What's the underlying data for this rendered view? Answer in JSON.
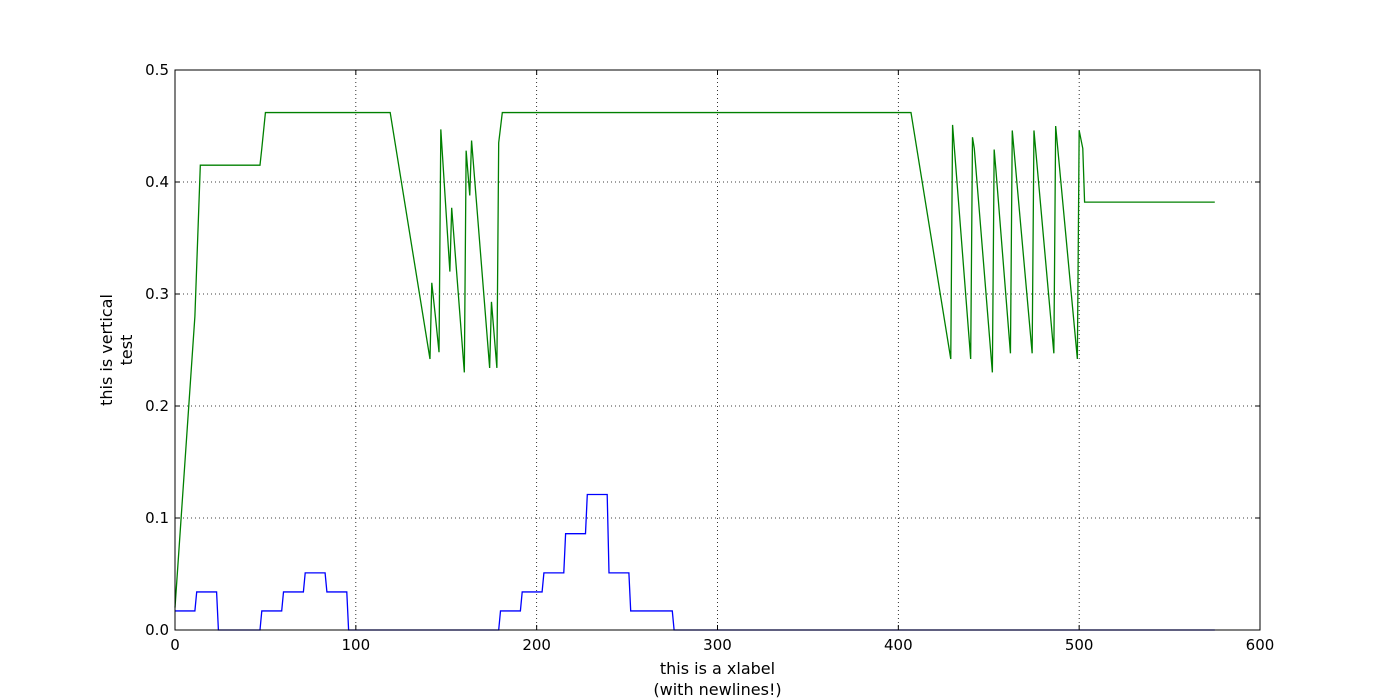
{
  "chart_data": {
    "type": "line",
    "title": "",
    "xlabel_lines": [
      "this is a xlabel",
      "(with newlines!)"
    ],
    "ylabel_lines": [
      "this is vertical",
      "test"
    ],
    "xlim": [
      0,
      600
    ],
    "ylim": [
      0,
      0.5
    ],
    "xticks": [
      0,
      100,
      200,
      300,
      400,
      500,
      600
    ],
    "yticks": [
      0.0,
      0.1,
      0.2,
      0.3,
      0.4,
      0.5
    ],
    "xtick_labels": [
      "0",
      "100",
      "200",
      "300",
      "400",
      "500",
      "600"
    ],
    "ytick_labels": [
      "0.0",
      "0.1",
      "0.2",
      "0.3",
      "0.4",
      "0.5"
    ],
    "grid": true,
    "series": [
      {
        "color": "#0000ff",
        "x": [
          0,
          11,
          12,
          23,
          24,
          47,
          48,
          59,
          60,
          71,
          72,
          83,
          84,
          95,
          96,
          179,
          180,
          191,
          192,
          203,
          204,
          215,
          216,
          227,
          228,
          239,
          240,
          251,
          252,
          275,
          276,
          575
        ],
        "y": [
          0.017,
          0.017,
          0.034,
          0.034,
          0.0,
          0.0,
          0.017,
          0.017,
          0.034,
          0.034,
          0.051,
          0.051,
          0.034,
          0.034,
          0.0,
          0.0,
          0.017,
          0.017,
          0.034,
          0.034,
          0.051,
          0.051,
          0.086,
          0.086,
          0.121,
          0.121,
          0.051,
          0.051,
          0.017,
          0.017,
          0.0,
          0.0
        ]
      },
      {
        "color": "#008000",
        "x": [
          0,
          11,
          14,
          47,
          48,
          50,
          119,
          141,
          142,
          144,
          146,
          147,
          152,
          153,
          160,
          161,
          163,
          164,
          174,
          175,
          178,
          179,
          181,
          407,
          429,
          430,
          431,
          440,
          441,
          442,
          452,
          453,
          454,
          462,
          463,
          474,
          475,
          486,
          487,
          499,
          500,
          502,
          503,
          575
        ],
        "y": [
          0.02,
          0.28,
          0.415,
          0.415,
          0.43,
          0.462,
          0.462,
          0.242,
          0.31,
          0.28,
          0.248,
          0.447,
          0.32,
          0.377,
          0.23,
          0.428,
          0.388,
          0.437,
          0.234,
          0.293,
          0.234,
          0.435,
          0.462,
          0.462,
          0.242,
          0.451,
          0.43,
          0.242,
          0.44,
          0.43,
          0.23,
          0.429,
          0.41,
          0.247,
          0.446,
          0.247,
          0.446,
          0.247,
          0.45,
          0.242,
          0.446,
          0.43,
          0.382,
          0.382
        ]
      }
    ]
  }
}
